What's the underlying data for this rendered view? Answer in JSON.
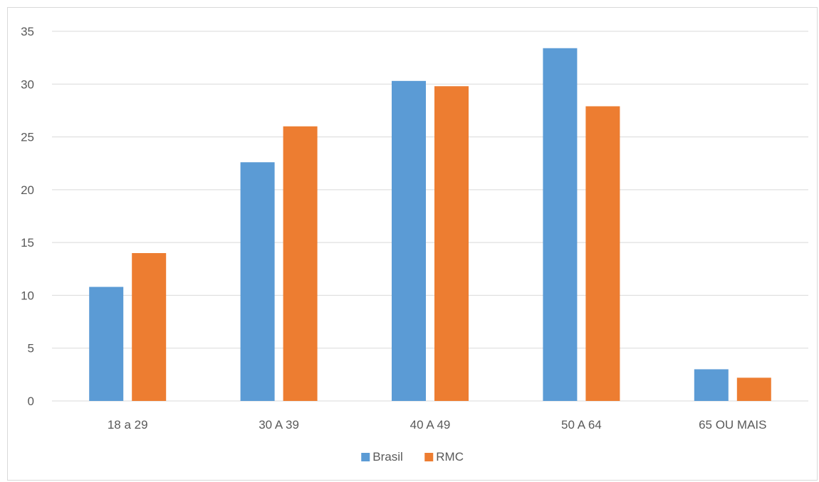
{
  "chart_data": {
    "type": "bar",
    "categories": [
      "18 a 29",
      "30 A 39",
      "40 A 49",
      "50 A 64",
      "65 OU MAIS"
    ],
    "series": [
      {
        "name": "Brasil",
        "color": "#5B9BD5",
        "values": [
          10.8,
          22.6,
          30.3,
          33.4,
          3.0
        ]
      },
      {
        "name": "RMC",
        "color": "#ED7D31",
        "values": [
          14.0,
          26.0,
          29.8,
          27.9,
          2.2
        ]
      }
    ],
    "ylim": [
      0,
      35
    ],
    "yticks": [
      0,
      5,
      10,
      15,
      20,
      25,
      30,
      35
    ],
    "grid": true,
    "legend_position": "bottom",
    "title": "",
    "xlabel": "",
    "ylabel": ""
  }
}
